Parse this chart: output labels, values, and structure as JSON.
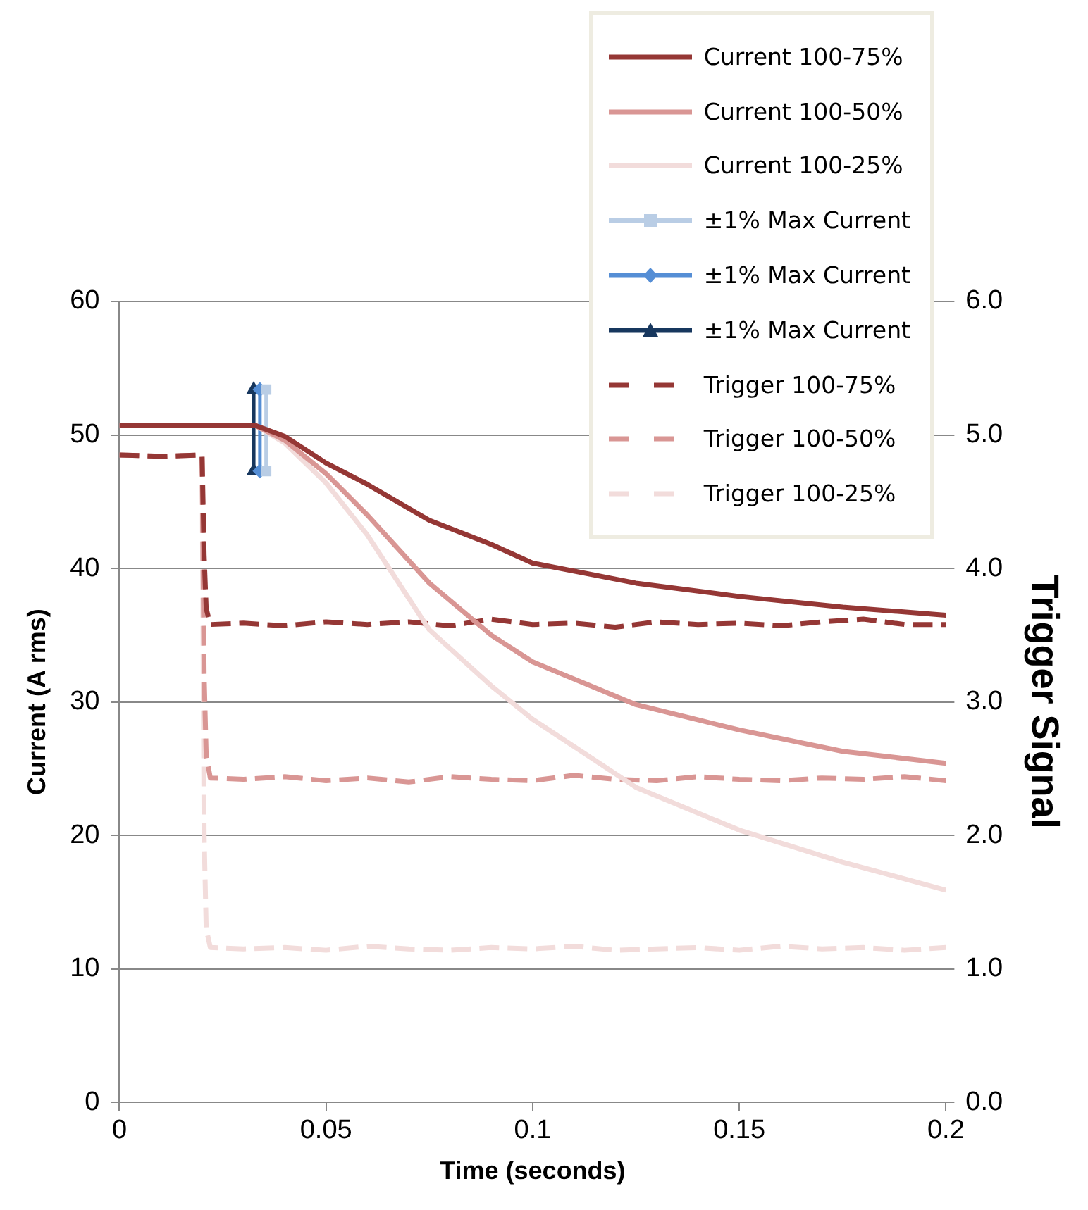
{
  "chart_data": {
    "type": "line",
    "xlabel": "Time (seconds)",
    "ylabel": "Current (A rms)",
    "y2label": "Trigger Signal",
    "xlim": [
      0,
      0.2
    ],
    "xticks": [
      0,
      0.05,
      0.1,
      0.15,
      0.2
    ],
    "ylim": [
      0,
      60
    ],
    "yticks": [
      0,
      10,
      20,
      30,
      40,
      50,
      60
    ],
    "y2lim": [
      0,
      6
    ],
    "y2ticks": [
      {
        "value": 0,
        "label": "0.0"
      },
      {
        "value": 1,
        "label": "1.0"
      },
      {
        "value": 2,
        "label": "2.0"
      },
      {
        "value": 3,
        "label": "3.0"
      },
      {
        "value": 4,
        "label": "4.0"
      },
      {
        "value": 5,
        "label": "5.0"
      },
      {
        "value": 6,
        "label": "6.0"
      }
    ],
    "grid": "y",
    "legend": "top right",
    "line_style": "solid",
    "marker": "none",
    "series": [
      {
        "name": "Current 100-75%",
        "color": "#953735",
        "x": [
          0,
          0.033,
          0.04,
          0.05,
          0.06,
          0.075,
          0.09,
          0.1,
          0.125,
          0.15,
          0.175,
          0.2
        ],
        "values": [
          50.7,
          50.7,
          49.9,
          47.9,
          46.3,
          43.6,
          41.8,
          40.4,
          38.9,
          37.9,
          37.1,
          36.5
        ]
      },
      {
        "name": "Current 100-50%",
        "color": "#d99694",
        "x": [
          0,
          0.033,
          0.04,
          0.05,
          0.06,
          0.075,
          0.09,
          0.1,
          0.125,
          0.15,
          0.175,
          0.2
        ],
        "values": [
          50.7,
          50.7,
          49.6,
          47.1,
          44.0,
          38.9,
          35.0,
          33.0,
          29.8,
          27.9,
          26.3,
          25.4
        ]
      },
      {
        "name": "Current 100-25%",
        "color": "#f2dcdb",
        "x": [
          0,
          0.033,
          0.04,
          0.05,
          0.06,
          0.075,
          0.09,
          0.1,
          0.125,
          0.15,
          0.175,
          0.2
        ],
        "values": [
          50.7,
          50.7,
          49.4,
          46.4,
          42.5,
          35.4,
          31.2,
          28.7,
          23.6,
          20.4,
          18.0,
          15.9
        ]
      },
      {
        "name": "±1% Max Current",
        "color": "#b9cde5",
        "marker": "square",
        "x": [
          0.0355,
          0.0355
        ],
        "values": [
          47.3,
          53.4
        ]
      },
      {
        "name": "±1% Max Current",
        "color": "#558ed5",
        "marker": "diamond",
        "x": [
          0.034,
          0.034
        ],
        "values": [
          47.3,
          53.4
        ]
      },
      {
        "name": "±1% Max Current",
        "color": "#17375e",
        "marker": "triangle",
        "x": [
          0.0325,
          0.0325
        ],
        "values": [
          47.3,
          53.4
        ]
      },
      {
        "name": "Trigger 100-75%",
        "color": "#953735",
        "axis": "y2",
        "line_style": "dashed",
        "x": [
          0,
          0.01,
          0.02,
          0.0205,
          0.021,
          0.022,
          0.03,
          0.04,
          0.05,
          0.06,
          0.07,
          0.08,
          0.09,
          0.1,
          0.11,
          0.12,
          0.13,
          0.14,
          0.15,
          0.16,
          0.17,
          0.18,
          0.19,
          0.2
        ],
        "values": [
          4.85,
          4.84,
          4.85,
          4.1,
          3.7,
          3.58,
          3.59,
          3.57,
          3.6,
          3.58,
          3.6,
          3.57,
          3.62,
          3.58,
          3.59,
          3.56,
          3.6,
          3.58,
          3.59,
          3.57,
          3.6,
          3.62,
          3.58,
          3.58
        ]
      },
      {
        "name": "Trigger 100-50%",
        "color": "#d99694",
        "axis": "y2",
        "line_style": "dashed",
        "x": [
          0,
          0.01,
          0.02,
          0.0205,
          0.021,
          0.022,
          0.03,
          0.04,
          0.05,
          0.06,
          0.07,
          0.08,
          0.09,
          0.1,
          0.11,
          0.12,
          0.13,
          0.14,
          0.15,
          0.16,
          0.17,
          0.18,
          0.19,
          0.2
        ],
        "values": [
          4.85,
          4.84,
          4.85,
          3.2,
          2.6,
          2.43,
          2.42,
          2.44,
          2.41,
          2.43,
          2.4,
          2.44,
          2.42,
          2.41,
          2.45,
          2.42,
          2.41,
          2.44,
          2.42,
          2.41,
          2.43,
          2.42,
          2.44,
          2.41
        ]
      },
      {
        "name": "Trigger 100-25%",
        "color": "#f2dcdb",
        "axis": "y2",
        "line_style": "dashed",
        "x": [
          0,
          0.01,
          0.02,
          0.0205,
          0.021,
          0.022,
          0.03,
          0.04,
          0.05,
          0.06,
          0.07,
          0.08,
          0.09,
          0.1,
          0.11,
          0.12,
          0.13,
          0.14,
          0.15,
          0.16,
          0.17,
          0.18,
          0.19,
          0.2
        ],
        "values": [
          4.85,
          4.84,
          4.85,
          2.0,
          1.3,
          1.16,
          1.15,
          1.16,
          1.14,
          1.17,
          1.15,
          1.14,
          1.16,
          1.15,
          1.17,
          1.14,
          1.15,
          1.16,
          1.14,
          1.17,
          1.15,
          1.16,
          1.14,
          1.16
        ]
      }
    ]
  }
}
